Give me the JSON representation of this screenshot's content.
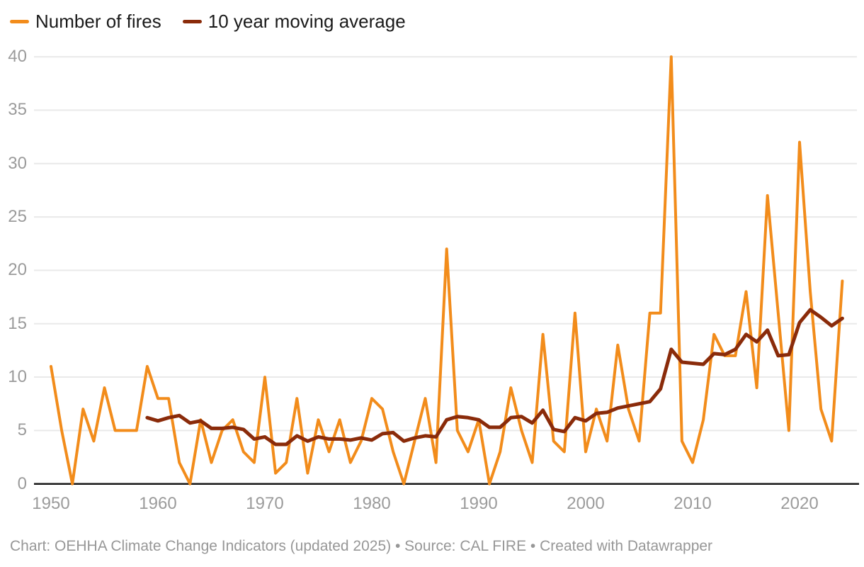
{
  "legend": {
    "items": [
      {
        "label": "Number of fires",
        "color": "#F28C1B"
      },
      {
        "label": "10 year moving average",
        "color": "#8A2B0A"
      }
    ]
  },
  "footer": {
    "text": "Chart: OEHHA Climate Change Indicators (updated 2025) • Source: CAL FIRE • Created with Datawrapper"
  },
  "chart_data": {
    "type": "line",
    "title": "",
    "xlabel": "",
    "ylabel": "",
    "ylim": [
      0,
      40
    ],
    "y_ticks": [
      0,
      5,
      10,
      15,
      20,
      25,
      30,
      35,
      40
    ],
    "x_label_ticks": [
      1950,
      1960,
      1970,
      1980,
      1990,
      2000,
      2010,
      2020
    ],
    "grid": "horizontal",
    "legend_position": "top-left",
    "background": "#ffffff",
    "axis_color": "#161616",
    "gridline_color": "#e9e9e9",
    "tick_label_color": "#9b9b9b",
    "x": [
      1950,
      1951,
      1952,
      1953,
      1954,
      1955,
      1956,
      1957,
      1958,
      1959,
      1960,
      1961,
      1962,
      1963,
      1964,
      1965,
      1966,
      1967,
      1968,
      1969,
      1970,
      1971,
      1972,
      1973,
      1974,
      1975,
      1976,
      1977,
      1978,
      1979,
      1980,
      1981,
      1982,
      1983,
      1984,
      1985,
      1986,
      1987,
      1988,
      1989,
      1990,
      1991,
      1992,
      1993,
      1994,
      1995,
      1996,
      1997,
      1998,
      1999,
      2000,
      2001,
      2002,
      2003,
      2004,
      2005,
      2006,
      2007,
      2008,
      2009,
      2010,
      2011,
      2012,
      2013,
      2014,
      2015,
      2016,
      2017,
      2018,
      2019,
      2020,
      2021,
      2022,
      2023,
      2024
    ],
    "series": [
      {
        "name": "Number of fires",
        "color": "#F28C1B",
        "stroke_width": 4,
        "values": [
          11,
          5,
          0,
          7,
          4,
          9,
          5,
          5,
          5,
          11,
          8,
          8,
          2,
          0,
          6,
          2,
          5,
          6,
          3,
          2,
          10,
          1,
          2,
          8,
          1,
          6,
          3,
          6,
          2,
          4,
          8,
          7,
          3,
          0,
          4,
          8,
          2,
          22,
          5,
          3,
          6,
          0,
          3,
          9,
          5,
          2,
          14,
          4,
          3,
          16,
          3,
          7,
          4,
          13,
          7,
          4,
          16,
          16,
          40,
          4,
          2,
          6,
          14,
          12,
          12,
          18,
          9,
          27,
          16,
          5,
          32,
          18,
          7,
          4,
          19
        ]
      },
      {
        "name": "10 year moving average",
        "color": "#8A2B0A",
        "stroke_width": 5,
        "values": [
          null,
          null,
          null,
          null,
          null,
          null,
          null,
          null,
          null,
          6.2,
          5.9,
          6.2,
          6.4,
          5.7,
          5.9,
          5.2,
          5.2,
          5.3,
          5.1,
          4.2,
          4.4,
          3.7,
          3.7,
          4.5,
          4.0,
          4.4,
          4.2,
          4.2,
          4.1,
          4.3,
          4.1,
          4.7,
          4.8,
          4.0,
          4.3,
          4.5,
          4.4,
          6.0,
          6.3,
          6.2,
          6.0,
          5.3,
          5.3,
          6.2,
          6.3,
          5.7,
          6.9,
          5.1,
          4.9,
          6.2,
          5.9,
          6.6,
          6.7,
          7.1,
          7.3,
          7.5,
          7.7,
          8.9,
          12.6,
          11.4,
          11.3,
          11.2,
          12.2,
          12.1,
          12.6,
          14.0,
          13.3,
          14.4,
          12.0,
          12.1,
          15.1,
          16.3,
          15.6,
          14.8,
          15.5
        ]
      }
    ]
  }
}
